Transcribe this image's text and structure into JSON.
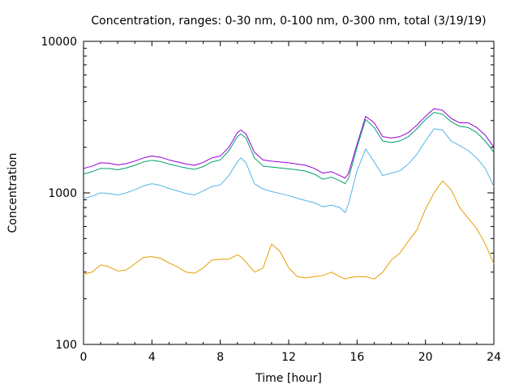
{
  "chart_data": {
    "type": "line",
    "title": "Concentration, ranges: 0-30 nm, 0-100 nm, 0-300 nm, total (3/19/19)",
    "xlabel": "Time [hour]",
    "ylabel": "Concentration",
    "xlim": [
      0,
      24
    ],
    "ylim": [
      100,
      10000
    ],
    "yscale": "log",
    "grid": false,
    "x_ticks": [
      0,
      4,
      8,
      12,
      16,
      20,
      24
    ],
    "x_tick_labels": [
      "0",
      "4",
      "8",
      "12",
      "16",
      "20",
      "24"
    ],
    "y_ticks": [
      100,
      1000,
      10000
    ],
    "y_tick_labels": [
      "100",
      "1000",
      "10000"
    ],
    "x": [
      0,
      0.5,
      1,
      1.5,
      2,
      2.5,
      3,
      3.5,
      4,
      4.5,
      5,
      5.5,
      6,
      6.5,
      7,
      7.5,
      8,
      8.5,
      9,
      9.2,
      9.5,
      10,
      10.5,
      11,
      11.5,
      12,
      12.5,
      13,
      13.5,
      14,
      14.5,
      15,
      15.3,
      15.5,
      16,
      16.5,
      17,
      17.5,
      18,
      18.5,
      19,
      19.5,
      20,
      20.5,
      21,
      21.5,
      22,
      22.5,
      23,
      23.5,
      24
    ],
    "series": [
      {
        "color": "#9400d3",
        "values": [
          1450,
          1500,
          1580,
          1570,
          1530,
          1560,
          1620,
          1700,
          1750,
          1720,
          1650,
          1600,
          1550,
          1520,
          1590,
          1700,
          1750,
          2000,
          2500,
          2600,
          2450,
          1850,
          1650,
          1620,
          1600,
          1580,
          1550,
          1520,
          1450,
          1350,
          1380,
          1300,
          1250,
          1350,
          2100,
          3200,
          2900,
          2350,
          2300,
          2350,
          2500,
          2800,
          3200,
          3600,
          3500,
          3100,
          2900,
          2900,
          2700,
          2400,
          2000
        ]
      },
      {
        "color": "#009e73",
        "values": [
          1330,
          1380,
          1450,
          1450,
          1420,
          1460,
          1520,
          1600,
          1640,
          1610,
          1550,
          1500,
          1460,
          1430,
          1490,
          1600,
          1650,
          1900,
          2350,
          2450,
          2300,
          1700,
          1500,
          1480,
          1460,
          1440,
          1420,
          1390,
          1330,
          1230,
          1270,
          1200,
          1150,
          1250,
          2000,
          3050,
          2700,
          2200,
          2150,
          2200,
          2350,
          2650,
          3050,
          3400,
          3300,
          2950,
          2750,
          2700,
          2500,
          2200,
          1850
        ]
      },
      {
        "color": "#56b4e9",
        "values": [
          920,
          950,
          1000,
          990,
          970,
          1000,
          1050,
          1110,
          1150,
          1120,
          1070,
          1030,
          990,
          970,
          1030,
          1100,
          1130,
          1300,
          1600,
          1700,
          1580,
          1150,
          1060,
          1020,
          990,
          960,
          920,
          890,
          860,
          810,
          830,
          800,
          740,
          850,
          1400,
          1950,
          1600,
          1300,
          1350,
          1400,
          1550,
          1800,
          2200,
          2650,
          2600,
          2200,
          2050,
          1900,
          1700,
          1450,
          1100
        ]
      },
      {
        "color": "#e69f00",
        "values": [
          290,
          300,
          335,
          325,
          305,
          310,
          340,
          375,
          380,
          370,
          345,
          325,
          300,
          295,
          320,
          360,
          365,
          365,
          390,
          380,
          350,
          300,
          320,
          460,
          410,
          320,
          280,
          275,
          280,
          285,
          300,
          280,
          270,
          275,
          280,
          280,
          270,
          300,
          360,
          400,
          480,
          570,
          780,
          1000,
          1200,
          1050,
          800,
          680,
          580,
          460,
          340
        ]
      }
    ]
  }
}
